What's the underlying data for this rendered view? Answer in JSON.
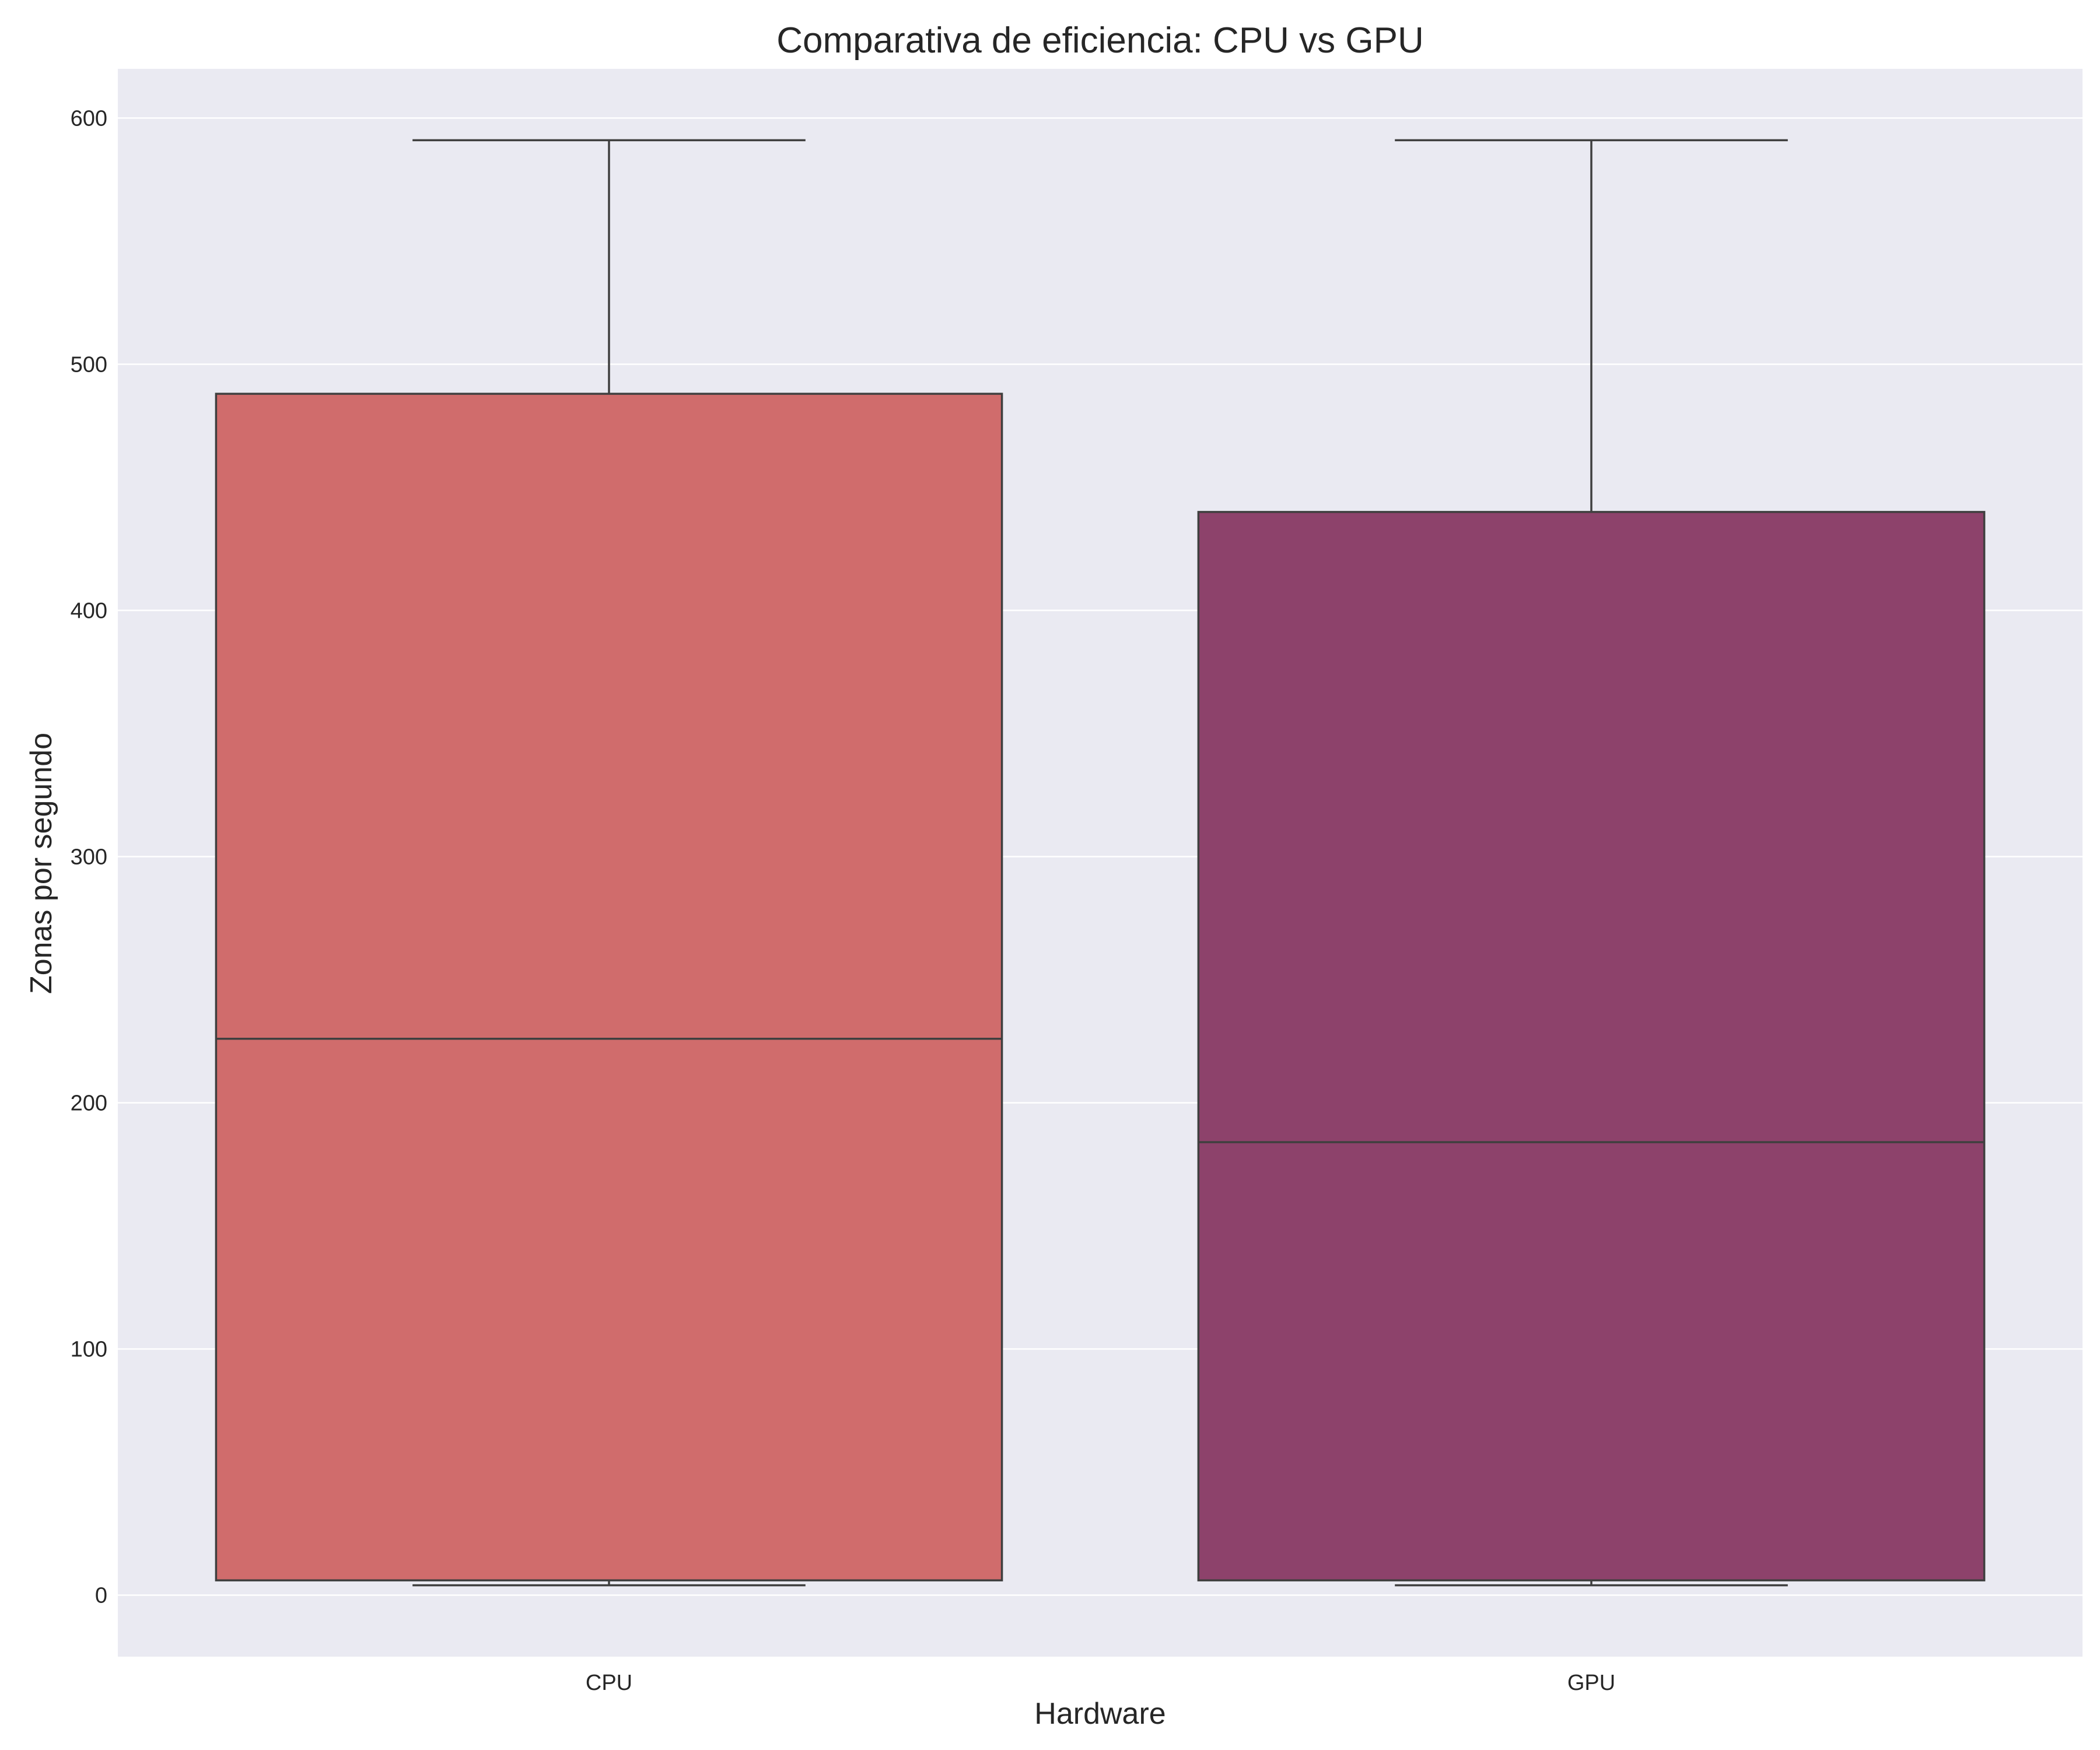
{
  "chart_data": {
    "type": "box",
    "title": "Comparativa de eficiencia: CPU vs GPU",
    "xlabel": "Hardware",
    "ylabel": "Zonas por segundo",
    "ylim": [
      -25,
      620
    ],
    "yticks": [
      0,
      100,
      200,
      300,
      400,
      500,
      600
    ],
    "ytick_labels": [
      "0",
      "100",
      "200",
      "300",
      "400",
      "500",
      "600"
    ],
    "grid": true,
    "categories": [
      "CPU",
      "GPU"
    ],
    "boxes": [
      {
        "category": "CPU",
        "whisker_low": 4,
        "q1": 6,
        "median": 226,
        "q3": 488,
        "whisker_high": 591,
        "color": "#d06c6c"
      },
      {
        "category": "GPU",
        "whisker_low": 4,
        "q1": 6,
        "median": 184,
        "q3": 440,
        "whisker_high": 591,
        "color": "#8d426b"
      }
    ],
    "colors": {
      "plot_background": "#eaeaf2",
      "grid": "#ffffff",
      "box_edge": "#3f3f3f"
    }
  }
}
